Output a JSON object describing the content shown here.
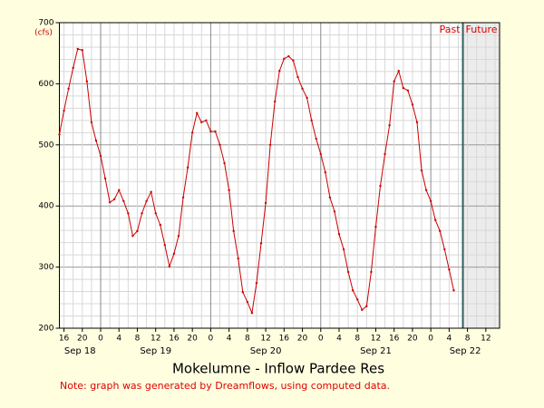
{
  "chart_data": {
    "type": "line",
    "title": "Mokelumne - Inflow Pardee Res",
    "note": "Note: graph was generated by Dreamflows, using computed data.",
    "y_unit_label": "(cfs)",
    "x": [
      -9,
      -8,
      -7,
      -6,
      -5,
      -4,
      -3,
      -2,
      -1,
      0,
      1,
      2,
      3,
      4,
      5,
      6,
      7,
      8,
      9,
      10,
      11,
      12,
      13,
      14,
      15,
      16,
      17,
      18,
      19,
      20,
      21,
      22,
      23,
      24,
      25,
      26,
      27,
      28,
      29,
      30,
      31,
      32,
      33,
      34,
      35,
      36,
      37,
      38,
      39,
      40,
      41,
      42,
      43,
      44,
      45,
      46,
      47,
      48,
      49,
      50,
      51,
      52,
      53,
      54,
      55,
      56,
      57,
      58,
      59,
      60,
      61,
      62,
      63,
      64,
      65,
      66,
      67,
      68,
      69,
      70,
      71,
      72,
      73,
      74,
      75,
      76,
      77
    ],
    "series": [
      {
        "name": "Inflow",
        "color": "#cc0000",
        "values": [
          517,
          556,
          592,
          626,
          657,
          655,
          604,
          537,
          507,
          482,
          445,
          406,
          411,
          426,
          408,
          388,
          351,
          359,
          388,
          408,
          423,
          388,
          369,
          336,
          301,
          322,
          351,
          414,
          463,
          520,
          552,
          537,
          540,
          522,
          522,
          500,
          470,
          426,
          359,
          314,
          259,
          243,
          225,
          274,
          339,
          405,
          500,
          571,
          621,
          641,
          645,
          638,
          611,
          592,
          577,
          540,
          510,
          485,
          455,
          414,
          391,
          354,
          329,
          292,
          262,
          247,
          230,
          236,
          292,
          366,
          433,
          485,
          532,
          604,
          621,
          593,
          589,
          566,
          537,
          458,
          426,
          408,
          377,
          359,
          329,
          296,
          262
        ]
      }
    ],
    "xlim": [
      -9,
      87
    ],
    "ylim": [
      200,
      700
    ],
    "yticks": [
      200,
      300,
      400,
      500,
      600,
      700
    ],
    "xticks": [
      {
        "value": -8,
        "label": "16"
      },
      {
        "value": -4,
        "label": "20"
      },
      0,
      4,
      8,
      12,
      {
        "value": 16,
        "label": "16"
      },
      {
        "value": 20,
        "label": "20"
      },
      {
        "value": 24,
        "label": "0"
      },
      {
        "value": 28,
        "label": "4"
      },
      {
        "value": 32,
        "label": "8"
      },
      {
        "value": 36,
        "label": "12"
      },
      {
        "value": 40,
        "label": "16"
      },
      {
        "value": 44,
        "label": "20"
      },
      {
        "value": 48,
        "label": "0"
      },
      {
        "value": 52,
        "label": "4"
      },
      {
        "value": 56,
        "label": "8"
      },
      {
        "value": 60,
        "label": "12"
      },
      {
        "value": 64,
        "label": "16"
      },
      {
        "value": 68,
        "label": "20"
      },
      {
        "value": 72,
        "label": "0"
      },
      {
        "value": 76,
        "label": "4"
      },
      {
        "value": 80,
        "label": "8"
      },
      {
        "value": 84,
        "label": "12"
      }
    ],
    "date_ticks": [
      {
        "value": -4.5,
        "label": "Sep 18"
      },
      {
        "value": 12,
        "label": "Sep 19"
      },
      {
        "value": 36,
        "label": "Sep 20"
      },
      {
        "value": 60,
        "label": "Sep 21"
      },
      {
        "value": 79.5,
        "label": "Sep 22"
      }
    ],
    "now": 79,
    "past_label": "Past",
    "future_label": "Future",
    "grid": true
  }
}
